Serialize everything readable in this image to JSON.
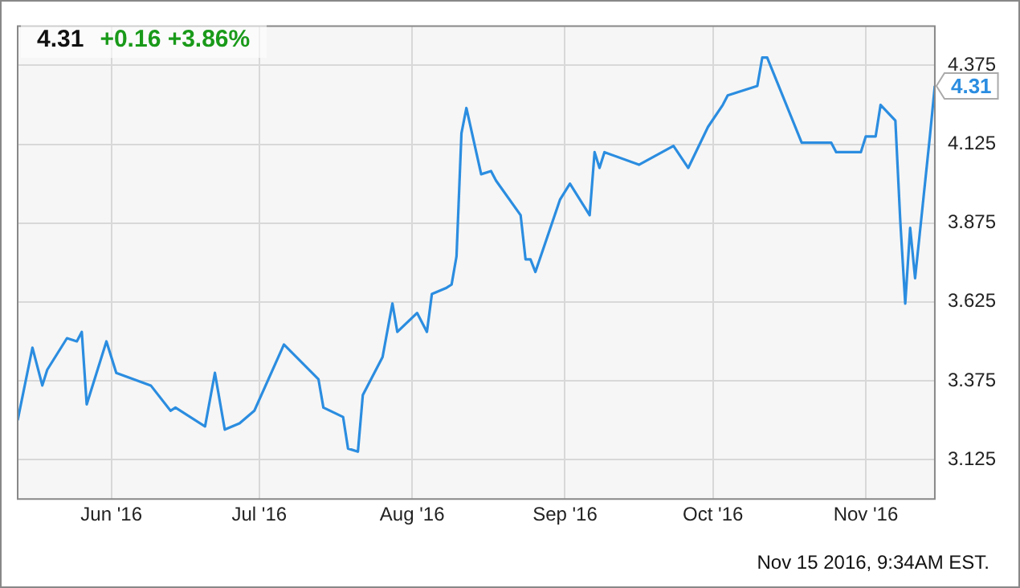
{
  "chart_data": {
    "type": "line",
    "title": "4.31",
    "subtitle": "+0.16 +3.86%",
    "annotations": [
      {
        "text": "4.31",
        "x": "2016-11-15",
        "y": 4.31
      },
      "Nov 15 2016, 9:34AM EST."
    ],
    "x": [
      "2016-05-13",
      "2016-05-16",
      "2016-05-18",
      "2016-05-19",
      "2016-05-23",
      "2016-05-25",
      "2016-05-26",
      "2016-05-27",
      "2016-05-31",
      "2016-06-02",
      "2016-06-09",
      "2016-06-13",
      "2016-06-14",
      "2016-06-20",
      "2016-06-22",
      "2016-06-24",
      "2016-06-27",
      "2016-06-30",
      "2016-07-06",
      "2016-07-13",
      "2016-07-14",
      "2016-07-18",
      "2016-07-19",
      "2016-07-21",
      "2016-07-22",
      "2016-07-26",
      "2016-07-28",
      "2016-07-29",
      "2016-08-02",
      "2016-08-04",
      "2016-08-05",
      "2016-08-08",
      "2016-08-09",
      "2016-08-10",
      "2016-08-11",
      "2016-08-12",
      "2016-08-15",
      "2016-08-17",
      "2016-08-18",
      "2016-08-23",
      "2016-08-24",
      "2016-08-25",
      "2016-08-26",
      "2016-08-31",
      "2016-09-02",
      "2016-09-06",
      "2016-09-07",
      "2016-09-08",
      "2016-09-09",
      "2016-09-16",
      "2016-09-23",
      "2016-09-26",
      "2016-09-30",
      "2016-10-03",
      "2016-10-04",
      "2016-10-10",
      "2016-10-11",
      "2016-10-12",
      "2016-10-19",
      "2016-10-25",
      "2016-10-26",
      "2016-10-31",
      "2016-11-01",
      "2016-11-03",
      "2016-11-04",
      "2016-11-07",
      "2016-11-08",
      "2016-11-09",
      "2016-11-10",
      "2016-11-11",
      "2016-11-14",
      "2016-11-15"
    ],
    "series": [
      {
        "color": "#2b8de0",
        "values": [
          3.25,
          3.48,
          3.36,
          3.41,
          3.51,
          3.5,
          3.53,
          3.3,
          3.5,
          3.4,
          3.36,
          3.28,
          3.29,
          3.23,
          3.4,
          3.22,
          3.24,
          3.28,
          3.49,
          3.38,
          3.29,
          3.26,
          3.16,
          3.15,
          3.33,
          3.45,
          3.62,
          3.53,
          3.59,
          3.53,
          3.65,
          3.67,
          3.68,
          3.77,
          4.16,
          4.24,
          4.03,
          4.04,
          4.01,
          3.9,
          3.76,
          3.76,
          3.72,
          3.95,
          4.0,
          3.9,
          4.1,
          4.05,
          4.1,
          4.06,
          4.12,
          4.05,
          4.18,
          4.25,
          4.28,
          4.31,
          4.4,
          4.4,
          4.13,
          4.13,
          4.1,
          4.1,
          4.15,
          4.15,
          4.25,
          4.2,
          3.88,
          3.62,
          3.86,
          3.7,
          4.15,
          4.31
        ]
      }
    ],
    "xlim": [
      "2016-05-13",
      "2016-11-15"
    ],
    "xticks": [
      {
        "value": "2016-06-01",
        "label": "Jun '16"
      },
      {
        "value": "2016-07-01",
        "label": "Jul '16"
      },
      {
        "value": "2016-08-01",
        "label": "Aug '16"
      },
      {
        "value": "2016-09-01",
        "label": "Sep '16"
      },
      {
        "value": "2016-10-01",
        "label": "Oct '16"
      },
      {
        "value": "2016-11-01",
        "label": "Nov '16"
      }
    ],
    "ylim": [
      3.0,
      4.5
    ],
    "yticks": [
      3.125,
      3.375,
      3.625,
      3.875,
      4.125,
      4.375
    ],
    "grid": true,
    "marker": "none",
    "line_style": "solid"
  }
}
